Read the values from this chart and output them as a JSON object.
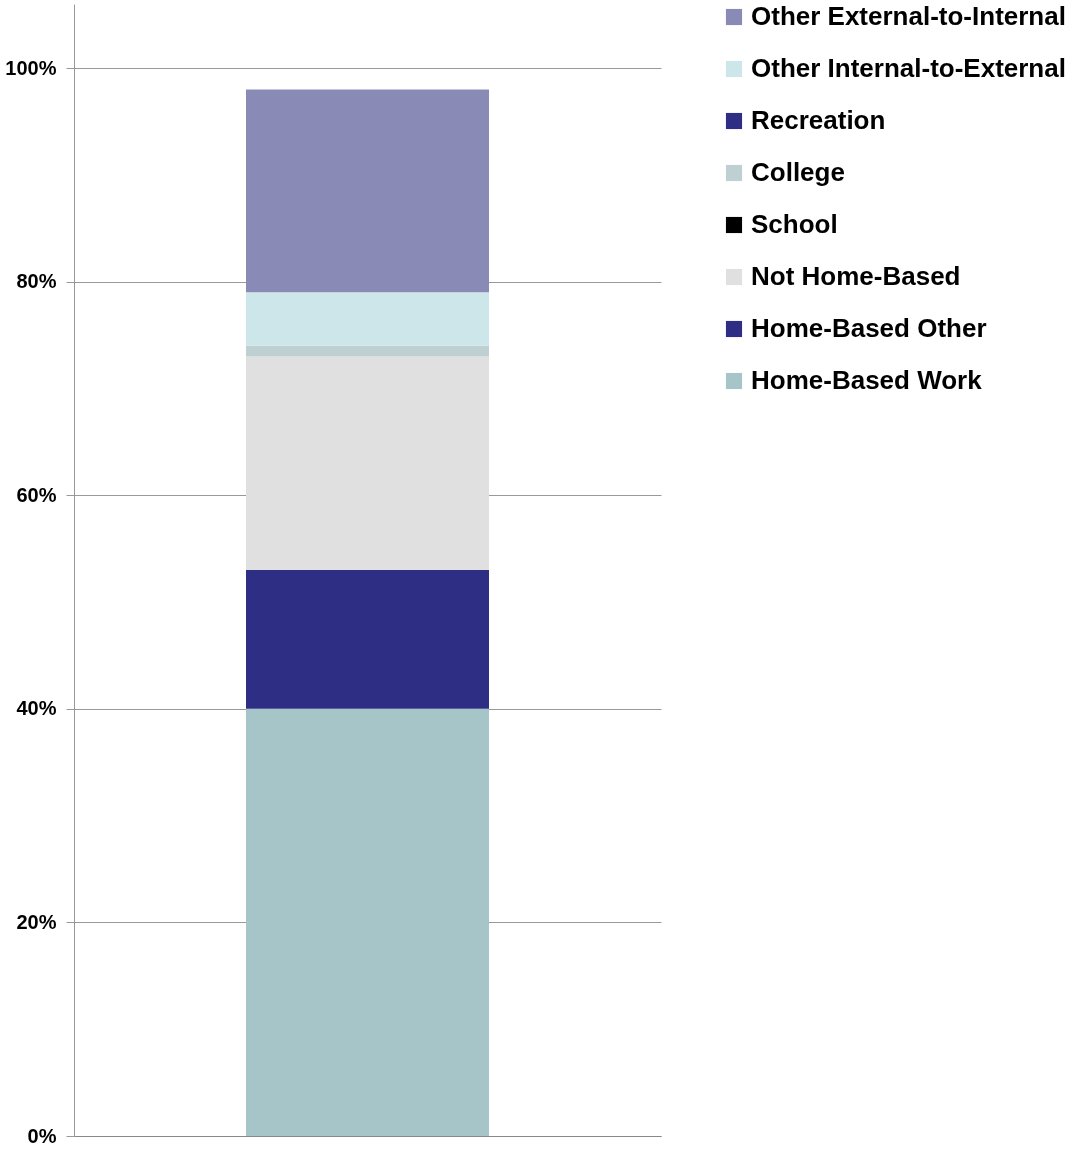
{
  "chart_data": {
    "type": "bar",
    "stacked": true,
    "categories": [
      null
    ],
    "series": [
      {
        "name": "Home-Based Work",
        "color": "#a5c5c8",
        "values": [
          40
        ]
      },
      {
        "name": "Home-Based Other",
        "color": "#2e2e85",
        "values": [
          13
        ]
      },
      {
        "name": "Not Home-Based",
        "color": "#e0e0e0",
        "values": [
          20
        ]
      },
      {
        "name": "School",
        "color": "#000000",
        "values": [
          0
        ]
      },
      {
        "name": "College",
        "color": "#bfd0d3",
        "values": [
          1
        ]
      },
      {
        "name": "Recreation",
        "color": "#2e2e85",
        "values": [
          0
        ]
      },
      {
        "name": "Other Internal-to-External",
        "color": "#cde6ea",
        "values": [
          5
        ]
      },
      {
        "name": "Other External-to-Internal",
        "color": "#8a8ab6",
        "values": [
          19
        ]
      }
    ],
    "ylim": [
      0,
      106
    ],
    "yticks": [
      {
        "value": 0,
        "label": "0%"
      },
      {
        "value": 20,
        "label": "20%"
      },
      {
        "value": 40,
        "label": "40%"
      },
      {
        "value": 60,
        "label": "60%"
      },
      {
        "value": 80,
        "label": "80%"
      },
      {
        "value": 100,
        "label": "100%"
      }
    ],
    "grid": "y",
    "legend": "right",
    "tick_labels": "y"
  }
}
